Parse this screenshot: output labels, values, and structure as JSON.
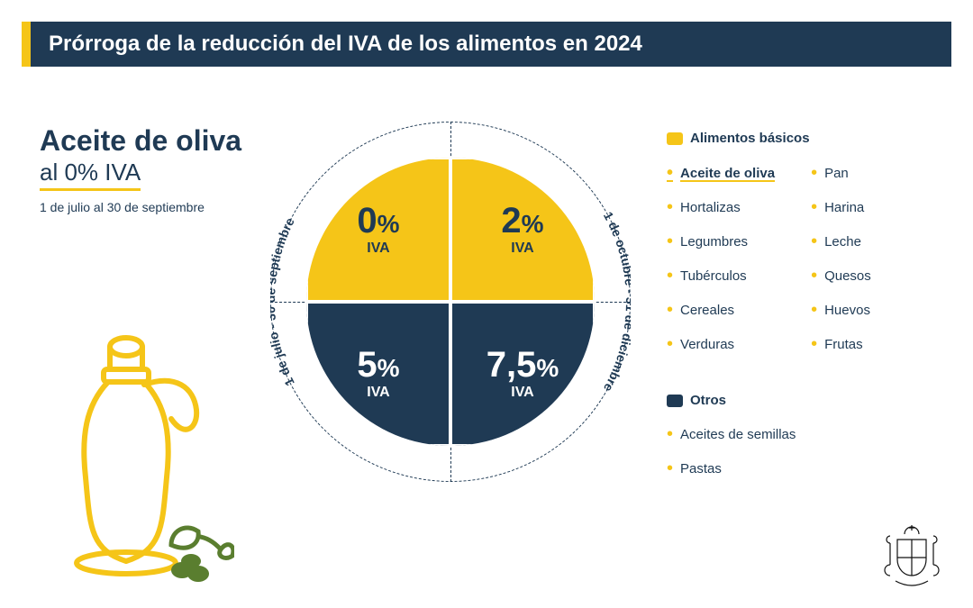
{
  "header": {
    "title": "Prórroga de la reducción del IVA de los alimentos en 2024"
  },
  "left": {
    "title": "Aceite de oliva",
    "subtitle": "al 0% IVA",
    "note": "1 de julio al 30 de septiembre"
  },
  "chart": {
    "type": "pie-quadrant",
    "arc_left": "1 de julio - 30 de septiembre",
    "arc_right": "1 de octubre - 31 de diciembre",
    "iva_label": "IVA",
    "background_color": "#ffffff",
    "outline_color": "#1f3a54",
    "quadrants": {
      "top_left": {
        "value": "0",
        "pct": "%",
        "bg": "#f5c518",
        "text": "#1f3a54"
      },
      "top_right": {
        "value": "2",
        "pct": "%",
        "bg": "#f5c518",
        "text": "#1f3a54"
      },
      "bot_left": {
        "value": "5",
        "pct": "%",
        "bg": "#1f3a54",
        "text": "#ffffff"
      },
      "bot_right": {
        "value": "7,5",
        "pct": "%",
        "bg": "#1f3a54",
        "text": "#ffffff"
      }
    }
  },
  "legend": {
    "basics_title": "Alimentos básicos",
    "basics_swatch": "#f5c518",
    "basics_col1": [
      "Aceite de oliva",
      "Hortalizas",
      "Legumbres",
      "Tubérculos",
      "Cereales",
      "Verduras"
    ],
    "basics_col2": [
      "Pan",
      "Harina",
      "Leche",
      "Quesos",
      "Huevos",
      "Frutas"
    ],
    "others_title": "Otros",
    "others_swatch": "#1f3a54",
    "others_items": [
      "Aceites de semillas",
      "Pastas"
    ]
  },
  "colors": {
    "yellow": "#f5c518",
    "navy": "#1f3a54",
    "olive_green": "#5a7e2f"
  }
}
